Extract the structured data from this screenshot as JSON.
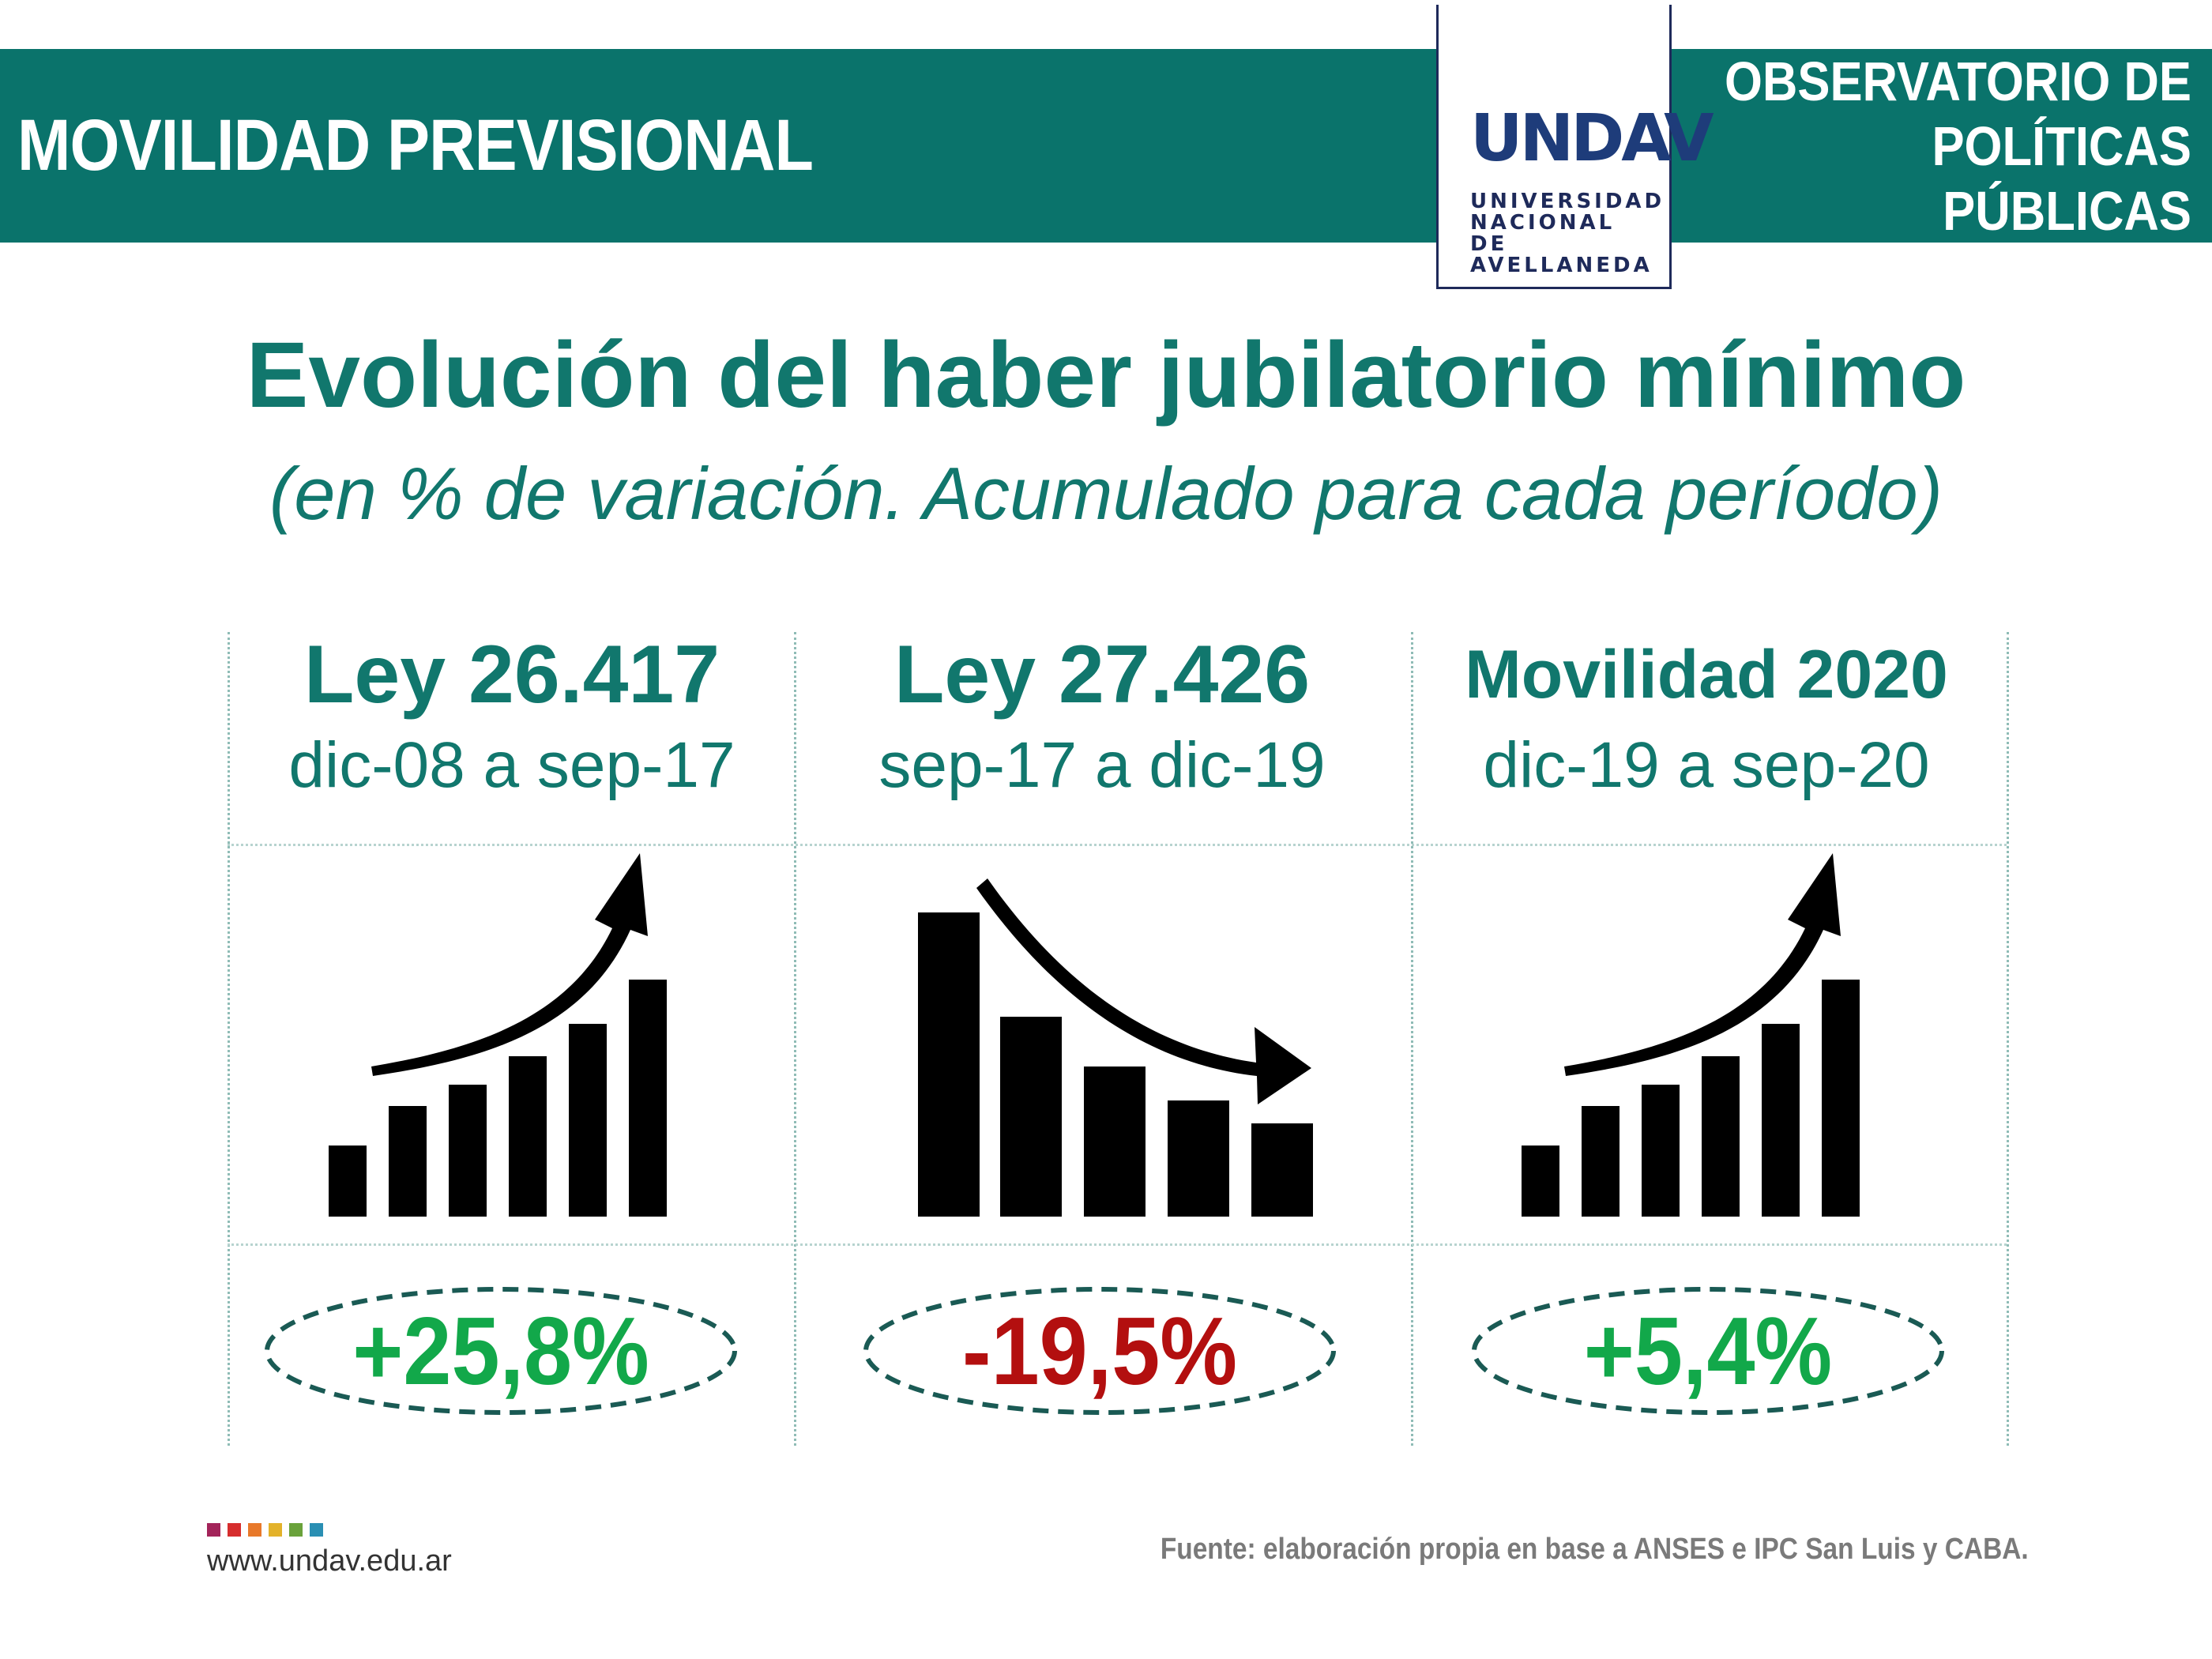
{
  "header": {
    "left_title": "MOVILIDAD PREVISIONAL",
    "right_title_line1": "OBSERVATORIO DE",
    "right_title_line2": "POLÍTICAS PÚBLICAS"
  },
  "logo": {
    "mark": "UNDAV",
    "line1": "UNIVERSIDAD",
    "line2": "NACIONAL DE",
    "line3": "AVELLANEDA"
  },
  "title": "Evolución del haber jubilatorio mínimo",
  "subtitle": "(en % de variación. Acumulado para cada período)",
  "periods": [
    {
      "law": "Ley 26.417",
      "range": "dic-08 a sep-17",
      "trend": "up",
      "value": "+25,8%"
    },
    {
      "law": "Ley 27.426",
      "range": "sep-17 a dic-19",
      "trend": "down",
      "value": "-19,5%"
    },
    {
      "law": "Movilidad 2020",
      "range": "dic-19 a sep-20",
      "trend": "up",
      "value": "+5,4%"
    }
  ],
  "colors": {
    "teal": "#0a736b",
    "positive": "#12a84a",
    "negative": "#b30f0f",
    "navy": "#1e2a5a",
    "dots": [
      "#a3245a",
      "#d62d2d",
      "#e8792a",
      "#e3b22a",
      "#6aa23b",
      "#2a8fb3"
    ]
  },
  "footer": {
    "url": "www.undav.edu.ar",
    "source": "Fuente: elaboración propia en base a ANSES e IPC San Luis y CABA."
  }
}
